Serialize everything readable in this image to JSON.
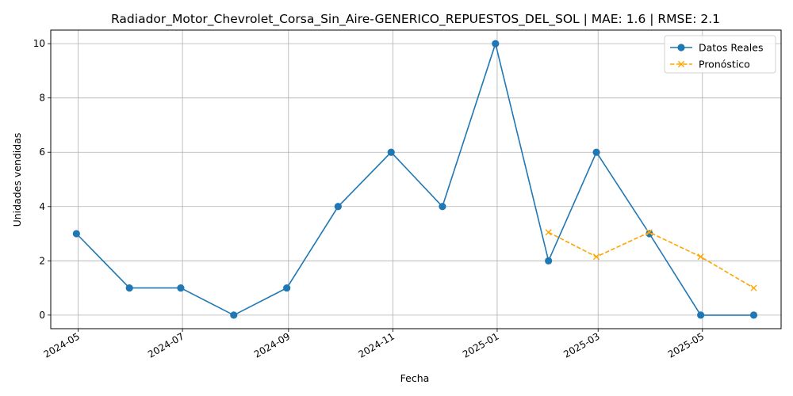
{
  "chart_data": {
    "type": "line",
    "title": "Radiador_Motor_Chevrolet_Corsa_Sin_Aire-GENERICO_REPUESTOS_DEL_SOL | MAE: 1.6 | RMSE: 2.1",
    "xlabel": "Fecha",
    "ylabel": "Unidades vendidas",
    "ylim": [
      -0.5,
      10.5
    ],
    "yticks": [
      0,
      2,
      4,
      6,
      8,
      10
    ],
    "xticks": [
      "2024-05",
      "2024-07",
      "2024-09",
      "2024-11",
      "2025-01",
      "2025-03",
      "2025-05"
    ],
    "xlim": [
      "2024-04-15",
      "2025-06-16"
    ],
    "grid": true,
    "legend_position": "top-right",
    "series": [
      {
        "name": "Datos Reales",
        "color": "#1f77b4",
        "marker": "circle",
        "line": "solid",
        "x": [
          "2024-04-30",
          "2024-05-31",
          "2024-06-30",
          "2024-07-31",
          "2024-08-31",
          "2024-09-30",
          "2024-10-31",
          "2024-11-30",
          "2024-12-31",
          "2025-01-31",
          "2025-02-28",
          "2025-03-31",
          "2025-04-30",
          "2025-05-31"
        ],
        "values": [
          3,
          1,
          1,
          0,
          1,
          4,
          6,
          4,
          10,
          2,
          6,
          3,
          0,
          0
        ]
      },
      {
        "name": "Pronóstico",
        "color": "#ffa500",
        "marker": "x",
        "line": "dashed",
        "x": [
          "2025-01-31",
          "2025-02-28",
          "2025-03-31",
          "2025-04-30",
          "2025-05-31"
        ],
        "values": [
          3.05,
          2.15,
          3.05,
          2.15,
          1.0
        ]
      }
    ]
  }
}
